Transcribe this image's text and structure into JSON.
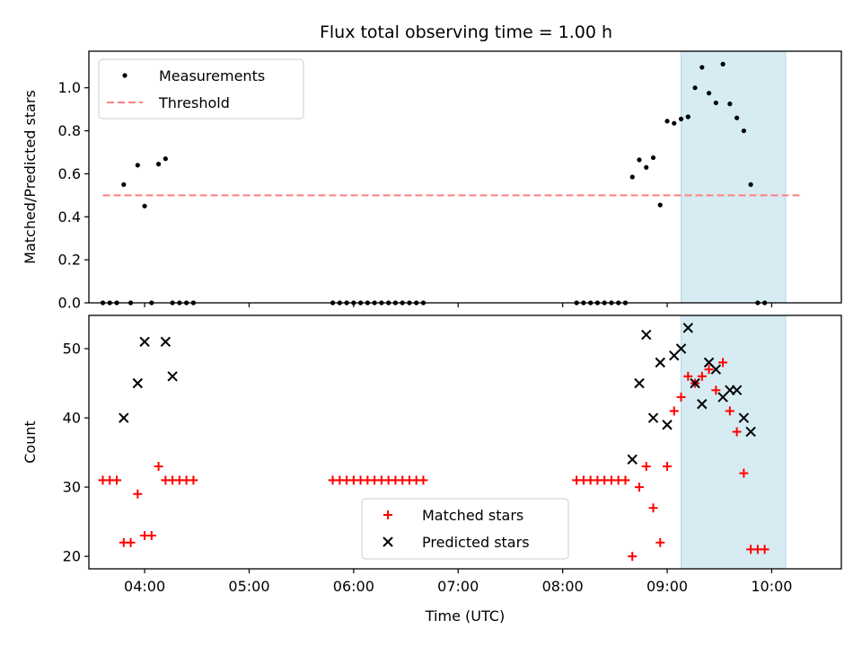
{
  "title": "Flux total observing time = 1.00 h",
  "chart_data": [
    {
      "type": "scatter",
      "ylabel": "Matched/Predicted stars",
      "xlabel": "",
      "xlim": [
        "03:28",
        "10:40"
      ],
      "ylim": [
        0,
        1.17
      ],
      "yticks": [
        "0.0",
        "0.2",
        "0.4",
        "0.6",
        "0.8",
        "1.0"
      ],
      "yticks_values": [
        0,
        0.2,
        0.4,
        0.6,
        0.8,
        1.0
      ],
      "shaded_region": {
        "x0": "09:08",
        "x1": "10:08",
        "color": "#add8e6"
      },
      "legend": {
        "placement": "top-left",
        "items": [
          "Measurements",
          "Threshold"
        ]
      },
      "series": [
        {
          "name": "Measurements",
          "marker": "dot",
          "color": "#000000",
          "points": [
            [
              "03:36",
              0
            ],
            [
              "03:40",
              0
            ],
            [
              "03:44",
              0
            ],
            [
              "03:48",
              0.55
            ],
            [
              "03:52",
              0
            ],
            [
              "03:56",
              0.64
            ],
            [
              "04:00",
              0.45
            ],
            [
              "04:04",
              0
            ],
            [
              "04:08",
              0.645
            ],
            [
              "04:12",
              0.67
            ],
            [
              "04:16",
              0
            ],
            [
              "04:20",
              0
            ],
            [
              "04:24",
              0
            ],
            [
              "04:28",
              0
            ],
            [
              "05:48",
              0
            ],
            [
              "05:52",
              0
            ],
            [
              "05:56",
              0
            ],
            [
              "06:00",
              0
            ],
            [
              "06:04",
              0
            ],
            [
              "06:08",
              0
            ],
            [
              "06:12",
              0
            ],
            [
              "06:16",
              0
            ],
            [
              "06:20",
              0
            ],
            [
              "06:24",
              0
            ],
            [
              "06:28",
              0
            ],
            [
              "06:32",
              0
            ],
            [
              "06:36",
              0
            ],
            [
              "06:40",
              0
            ],
            [
              "08:08",
              0
            ],
            [
              "08:12",
              0
            ],
            [
              "08:16",
              0
            ],
            [
              "08:20",
              0
            ],
            [
              "08:24",
              0
            ],
            [
              "08:28",
              0
            ],
            [
              "08:32",
              0
            ],
            [
              "08:36",
              0
            ],
            [
              "08:40",
              0.585
            ],
            [
              "08:44",
              0.665
            ],
            [
              "08:48",
              0.63
            ],
            [
              "08:52",
              0.675
            ],
            [
              "08:56",
              0.455
            ],
            [
              "09:00",
              0.845
            ],
            [
              "09:04",
              0.835
            ],
            [
              "09:08",
              0.855
            ],
            [
              "09:12",
              0.865
            ],
            [
              "09:16",
              1.0
            ],
            [
              "09:20",
              1.095
            ],
            [
              "09:24",
              0.975
            ],
            [
              "09:28",
              0.93
            ],
            [
              "09:32",
              1.11
            ],
            [
              "09:36",
              0.925
            ],
            [
              "09:40",
              0.86
            ],
            [
              "09:44",
              0.8
            ],
            [
              "09:48",
              0.55
            ],
            [
              "09:52",
              0
            ],
            [
              "09:56",
              0
            ]
          ]
        },
        {
          "name": "Threshold",
          "style": "dashed",
          "color": "#ff7f7f",
          "points": [
            [
              "03:36",
              0.5
            ],
            [
              "10:16",
              0.5
            ]
          ]
        }
      ]
    },
    {
      "type": "scatter",
      "ylabel": "Count",
      "xlabel": "Time (UTC)",
      "xlim": [
        "03:28",
        "10:40"
      ],
      "ylim": [
        18.2,
        54.8
      ],
      "yticks": [
        "20",
        "30",
        "40",
        "50"
      ],
      "yticks_values": [
        20,
        30,
        40,
        50
      ],
      "xticks": [
        "04:00",
        "05:00",
        "06:00",
        "07:00",
        "08:00",
        "09:00",
        "10:00"
      ],
      "shaded_region": {
        "x0": "09:08",
        "x1": "10:08",
        "color": "#add8e6"
      },
      "legend": {
        "placement": "lower-center",
        "items": [
          "Matched stars",
          "Predicted stars"
        ]
      },
      "series": [
        {
          "name": "Matched stars",
          "marker": "plus",
          "color": "#ff0000",
          "points": [
            [
              "03:36",
              31
            ],
            [
              "03:40",
              31
            ],
            [
              "03:44",
              31
            ],
            [
              "03:48",
              22
            ],
            [
              "03:52",
              22
            ],
            [
              "03:56",
              29
            ],
            [
              "04:00",
              23
            ],
            [
              "04:04",
              23
            ],
            [
              "04:08",
              33
            ],
            [
              "04:12",
              31
            ],
            [
              "04:16",
              31
            ],
            [
              "04:20",
              31
            ],
            [
              "04:24",
              31
            ],
            [
              "04:28",
              31
            ],
            [
              "05:48",
              31
            ],
            [
              "05:52",
              31
            ],
            [
              "05:56",
              31
            ],
            [
              "06:00",
              31
            ],
            [
              "06:04",
              31
            ],
            [
              "06:08",
              31
            ],
            [
              "06:12",
              31
            ],
            [
              "06:16",
              31
            ],
            [
              "06:20",
              31
            ],
            [
              "06:24",
              31
            ],
            [
              "06:28",
              31
            ],
            [
              "06:32",
              31
            ],
            [
              "06:36",
              31
            ],
            [
              "06:40",
              31
            ],
            [
              "08:08",
              31
            ],
            [
              "08:12",
              31
            ],
            [
              "08:16",
              31
            ],
            [
              "08:20",
              31
            ],
            [
              "08:24",
              31
            ],
            [
              "08:28",
              31
            ],
            [
              "08:32",
              31
            ],
            [
              "08:36",
              31
            ],
            [
              "08:40",
              20
            ],
            [
              "08:44",
              30
            ],
            [
              "08:48",
              33
            ],
            [
              "08:52",
              27
            ],
            [
              "08:56",
              22
            ],
            [
              "09:00",
              33
            ],
            [
              "09:04",
              41
            ],
            [
              "09:08",
              43
            ],
            [
              "09:12",
              46
            ],
            [
              "09:16",
              45
            ],
            [
              "09:20",
              46
            ],
            [
              "09:24",
              47
            ],
            [
              "09:28",
              44
            ],
            [
              "09:32",
              48
            ],
            [
              "09:36",
              41
            ],
            [
              "09:40",
              38
            ],
            [
              "09:44",
              32
            ],
            [
              "09:48",
              21
            ],
            [
              "09:52",
              21
            ],
            [
              "09:56",
              21
            ]
          ]
        },
        {
          "name": "Predicted stars",
          "marker": "x",
          "color": "#000000",
          "points": [
            [
              "03:48",
              40
            ],
            [
              "03:56",
              45
            ],
            [
              "04:00",
              51
            ],
            [
              "04:12",
              51
            ],
            [
              "04:16",
              46
            ],
            [
              "08:40",
              34
            ],
            [
              "08:44",
              45
            ],
            [
              "08:48",
              52
            ],
            [
              "08:52",
              40
            ],
            [
              "08:56",
              48
            ],
            [
              "09:00",
              39
            ],
            [
              "09:04",
              49
            ],
            [
              "09:08",
              50
            ],
            [
              "09:12",
              53
            ],
            [
              "09:16",
              45
            ],
            [
              "09:20",
              42
            ],
            [
              "09:24",
              48
            ],
            [
              "09:28",
              47
            ],
            [
              "09:32",
              43
            ],
            [
              "09:36",
              44
            ],
            [
              "09:40",
              44
            ],
            [
              "09:44",
              40
            ],
            [
              "09:48",
              38
            ]
          ]
        }
      ]
    }
  ]
}
